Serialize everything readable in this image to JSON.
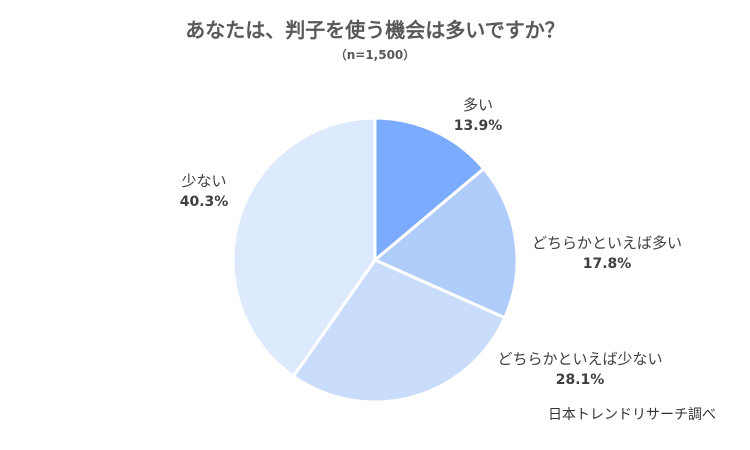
{
  "chart_data": {
    "type": "pie",
    "title": "あなたは、判子を使う機会は多いですか？",
    "subtitle": "（n=1,500）",
    "slices": [
      {
        "label": "多い",
        "value": 13.9,
        "value_label": "13.9%",
        "color": "#7aabff"
      },
      {
        "label": "どちらかといえば多い",
        "value": 17.8,
        "value_label": "17.8%",
        "color": "#b0ccfb"
      },
      {
        "label": "どちらかといえば少ない",
        "value": 28.1,
        "value_label": "28.1%",
        "color": "#c9dcfb"
      },
      {
        "label": "少ない",
        "value": 40.3,
        "value_label": "40.3%",
        "color": "#dde9fd"
      }
    ],
    "start": "12 o'clock",
    "direction": "clockwise",
    "slice_border_color": "#ffffff",
    "credit": "日本トレンドリサーチ調べ"
  }
}
